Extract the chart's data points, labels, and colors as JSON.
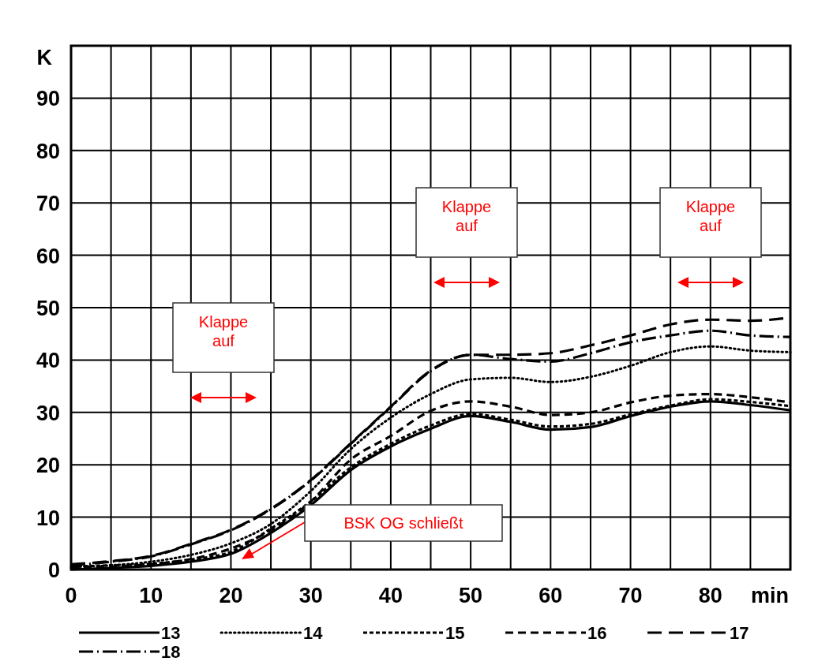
{
  "chart_data": {
    "type": "line",
    "xlabel": "min",
    "ylabel": "K",
    "x": [
      0,
      5,
      10,
      15,
      20,
      25,
      30,
      35,
      40,
      45,
      50,
      55,
      60,
      65,
      70,
      75,
      80,
      85,
      90
    ],
    "xlim": [
      0,
      90
    ],
    "ylim": [
      0,
      100
    ],
    "xticks": [
      0,
      {
        "value": 5,
        "label": null
      },
      10,
      {
        "value": 15,
        "label": null
      },
      20,
      {
        "value": 25,
        "label": null
      },
      30,
      {
        "value": 35,
        "label": null
      },
      40,
      {
        "value": 45,
        "label": null
      },
      50,
      {
        "value": 55,
        "label": null
      },
      60,
      {
        "value": 65,
        "label": null
      },
      70,
      {
        "value": 75,
        "label": null
      },
      80,
      {
        "value": 85,
        "label": null
      },
      {
        "value": 90,
        "label": null
      }
    ],
    "yticks": [
      0,
      10,
      20,
      30,
      40,
      50,
      60,
      70,
      80,
      90
    ],
    "grid": true,
    "legend": "bottom",
    "marker": "none",
    "series": [
      {
        "name": "13",
        "color": "#000000",
        "line_style": "solid",
        "values": [
          0,
          0.3,
          0.7,
          1.5,
          3,
          7,
          12.3,
          19,
          23.5,
          26.9,
          29.3,
          28.2,
          26.7,
          27.2,
          29.3,
          31.1,
          32.1,
          31.4,
          30.4
        ]
      },
      {
        "name": "14",
        "color": "#000000",
        "line_style": "dotted",
        "values": [
          0.5,
          0.8,
          1.5,
          2.8,
          5,
          8.7,
          15,
          23,
          29,
          33.5,
          36.3,
          36.6,
          35.8,
          36.8,
          38.9,
          41.5,
          42.6,
          41.8,
          41.5
        ]
      },
      {
        "name": "15",
        "color": "#000000",
        "line_style": "short-dashed",
        "values": [
          0.6,
          0.8,
          1.1,
          1.9,
          3.4,
          7.8,
          13,
          19.5,
          24,
          27.5,
          29.7,
          28.6,
          27.3,
          27.8,
          29.6,
          31.3,
          32.5,
          32,
          31.2
        ]
      },
      {
        "name": "16",
        "color": "#000000",
        "line_style": "dashed",
        "values": [
          0.3,
          0.5,
          1,
          2,
          4,
          7.5,
          13,
          21,
          25.5,
          30.3,
          32.1,
          31.1,
          29.5,
          30,
          31.9,
          33.2,
          33.5,
          32.9,
          31.9
        ]
      },
      {
        "name": "17",
        "color": "#000000",
        "line_style": "long-dashed",
        "values": [
          1,
          1.6,
          2.6,
          4.9,
          7.6,
          11.6,
          17.1,
          24.1,
          31.1,
          38,
          41,
          41,
          41.3,
          42.8,
          44.7,
          46.8,
          47.7,
          47.5,
          48.1
        ]
      },
      {
        "name": "18",
        "color": "#000000",
        "line_style": "dashdot",
        "values": [
          0.8,
          1.5,
          2.5,
          4.8,
          7.5,
          11.5,
          17,
          24,
          31,
          37.9,
          41,
          40.2,
          39.7,
          41.3,
          43.4,
          44.7,
          45.6,
          44.7,
          44.4
        ]
      }
    ],
    "annotations": [
      "Klappe auf",
      "Klappe auf",
      "Klappe auf",
      "BSK OG schließt"
    ]
  }
}
